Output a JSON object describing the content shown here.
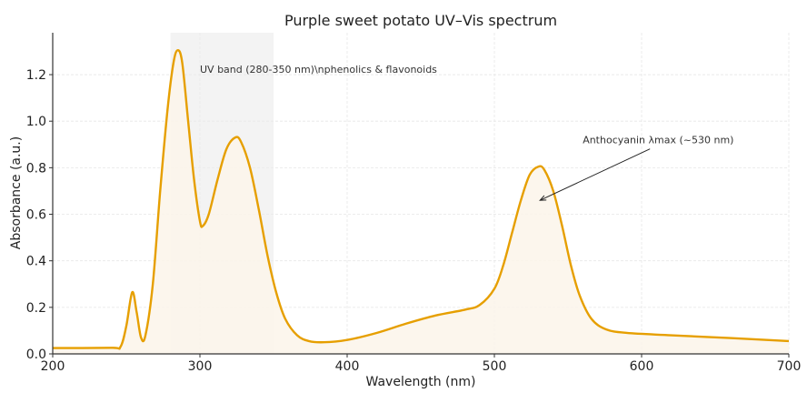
{
  "chart_data": {
    "type": "line",
    "title": "Purple sweet potato UV–Vis spectrum",
    "xlabel": "Wavelength (nm)",
    "ylabel": "Absorbance (a.u.)",
    "xlim": [
      200,
      700
    ],
    "ylim": [
      0,
      1.38
    ],
    "xticks": [
      200,
      300,
      400,
      500,
      600,
      700
    ],
    "xtick_labels": [
      "200",
      "300",
      "400",
      "500",
      "600",
      "700"
    ],
    "yticks": [
      0.0,
      0.2,
      0.4,
      0.6,
      0.8,
      1.0,
      1.2
    ],
    "ytick_labels": [
      "0.0",
      "0.2",
      "0.4",
      "0.6",
      "0.8",
      "1.0",
      "1.2"
    ],
    "grid": true,
    "line_color": "#E69F00",
    "fill_color": "#FBF5EA",
    "band": {
      "x0": 280,
      "x1": 350,
      "color": "#EBEBEB",
      "label": "UV band (280-350 nm)\\nphenolics & flavonoids",
      "label_xy": [
        300,
        1.2
      ]
    },
    "annotation": {
      "text": "Anthocyanin λmax (~530 nm)",
      "text_xy": [
        560,
        0.92
      ],
      "arrow_to": [
        531,
        0.66
      ]
    },
    "series": [
      {
        "name": "Absorbance",
        "x": [
          200,
          240,
          246,
          250,
          254,
          257,
          260,
          263,
          268,
          273,
          278,
          282,
          285,
          288,
          292,
          296,
          300,
          302,
          306,
          312,
          318,
          324,
          328,
          334,
          340,
          346,
          352,
          358,
          366,
          374,
          384,
          400,
          420,
          440,
          460,
          480,
          490,
          500,
          506,
          512,
          518,
          524,
          530,
          534,
          540,
          546,
          552,
          558,
          566,
          576,
          590,
          620,
          660,
          700
        ],
        "y": [
          0.025,
          0.026,
          0.03,
          0.12,
          0.265,
          0.18,
          0.07,
          0.08,
          0.3,
          0.7,
          1.05,
          1.25,
          1.305,
          1.25,
          1.0,
          0.75,
          0.57,
          0.55,
          0.6,
          0.75,
          0.88,
          0.93,
          0.91,
          0.8,
          0.62,
          0.42,
          0.26,
          0.15,
          0.08,
          0.055,
          0.05,
          0.06,
          0.09,
          0.13,
          0.165,
          0.19,
          0.21,
          0.28,
          0.38,
          0.52,
          0.66,
          0.77,
          0.805,
          0.79,
          0.7,
          0.55,
          0.38,
          0.25,
          0.15,
          0.105,
          0.09,
          0.08,
          0.068,
          0.055
        ]
      }
    ]
  }
}
